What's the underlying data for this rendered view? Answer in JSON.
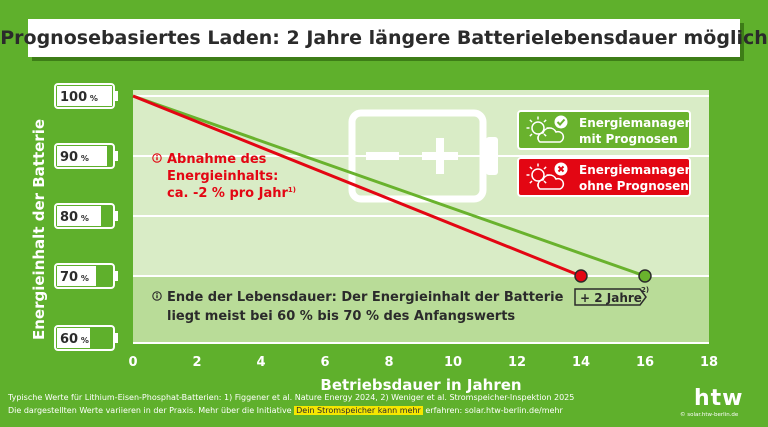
{
  "title": "Prognosebasiertes Laden: 2 Jahre längere Batterielebensdauer möglich",
  "chart_data": {
    "type": "line",
    "xlabel": "Betriebsdauer in Jahren",
    "ylabel": "Energieinhalt der Batterie",
    "xlim": [
      0,
      18
    ],
    "ylim": [
      57,
      103
    ],
    "x_ticks": [
      "0",
      "2",
      "4",
      "6",
      "8",
      "10",
      "12",
      "14",
      "16",
      "18"
    ],
    "y_ticks": [
      {
        "value": 100,
        "num": "100",
        "unit": "%"
      },
      {
        "value": 90,
        "num": "90",
        "unit": "%"
      },
      {
        "value": 80,
        "num": "80",
        "unit": "%"
      },
      {
        "value": 70,
        "num": "70",
        "unit": "%"
      },
      {
        "value": 60,
        "num": "60",
        "unit": "%"
      }
    ],
    "grid": true,
    "series": [
      {
        "name": "Energiemanager mit Prognosen",
        "color": "#69b22d",
        "x": [
          0,
          16
        ],
        "y": [
          100,
          70
        ]
      },
      {
        "name": "Energiemanager ohne Prognosen",
        "color": "#e30613",
        "x": [
          0,
          14
        ],
        "y": [
          100,
          70
        ]
      }
    ],
    "annotations": {
      "decline": {
        "lines": [
          "Abnahme des",
          "Energieinhalts:",
          "ca. -2 % pro Jahr"
        ],
        "sup": "1)"
      },
      "end_of_life": {
        "lines": [
          "Ende der Lebensdauer: Der Energieinhalt der Batterie",
          "liegt meist bei 60 % bis 70 % des Anfangswerts"
        ]
      },
      "gain": {
        "text": "+ 2 Jahre",
        "sup": "2)"
      }
    },
    "legend": {
      "placement": "top-right",
      "with": [
        "Energiemanager",
        "mit Prognosen"
      ],
      "without": [
        "Energiemanager",
        "ohne Prognosen"
      ]
    }
  },
  "footer": {
    "line1": "Typische Werte für Lithium-Eisen-Phosphat-Batterien: 1) Figgener et al. Nature Energy 2024, 2) Weniger et al. Stromspeicher-Inspektion 2025",
    "line2_pre": "Die dargestellten Werte variieren in der Praxis. Mehr über die Initiative ",
    "line2_highlight": "Dein Stromspeicher kann mehr",
    "line2_post": " erfahren: solar.htw-berlin.de/mehr"
  },
  "logo": {
    "text": "htw",
    "url": "© solar.htw-berlin.de"
  },
  "colors": {
    "background": "#5fb02c",
    "plot": "#d9ecc6",
    "band": "#b9dc98",
    "green": "#69b22d",
    "red": "#e30613",
    "dark": "#2b2b2b"
  }
}
